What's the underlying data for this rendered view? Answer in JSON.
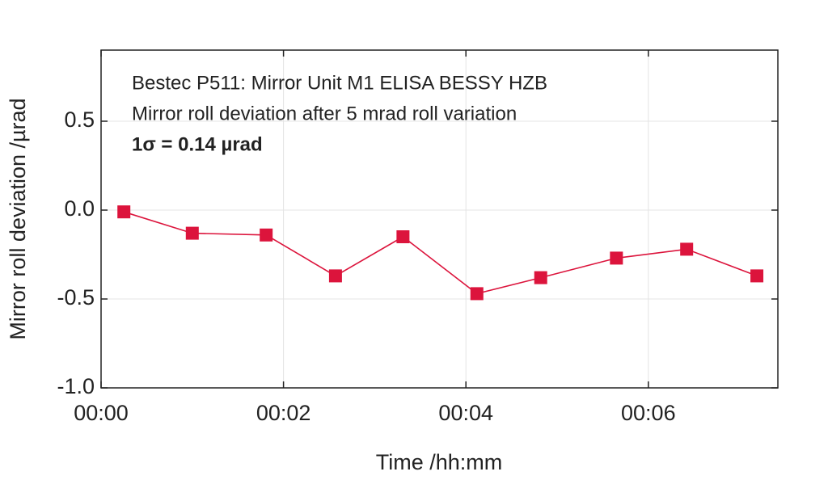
{
  "chart_data": {
    "type": "line",
    "annotations": [
      "Bestec P511: Mirror Unit M1 ELISA BESSY HZB",
      "Mirror roll deviation after 5 mrad roll variation",
      "1σ = 0.14 µrad"
    ],
    "x_label": "Time /hh:mm",
    "y_label": "Mirror roll deviation /µrad",
    "x": [
      0.25,
      1.0,
      1.81,
      2.57,
      3.31,
      4.12,
      4.82,
      5.65,
      6.42,
      7.19
    ],
    "series": [
      {
        "name": "Mirror roll deviation",
        "color": "#dc143c",
        "values": [
          -0.01,
          -0.13,
          -0.14,
          -0.37,
          -0.15,
          -0.47,
          -0.38,
          -0.27,
          -0.22,
          -0.37
        ]
      }
    ],
    "xlim": [
      0,
      7.42
    ],
    "ylim": [
      -1.0,
      0.9
    ],
    "xticks": [
      {
        "value": 0,
        "label": "00:00"
      },
      {
        "value": 2,
        "label": "00:02"
      },
      {
        "value": 4,
        "label": "00:04"
      },
      {
        "value": 6,
        "label": "00:06"
      }
    ],
    "yticks": [
      {
        "value": -1.0,
        "label": "-1.0"
      },
      -0.5,
      {
        "value": 0,
        "label": "0.0"
      },
      0.5
    ],
    "grid": true
  }
}
